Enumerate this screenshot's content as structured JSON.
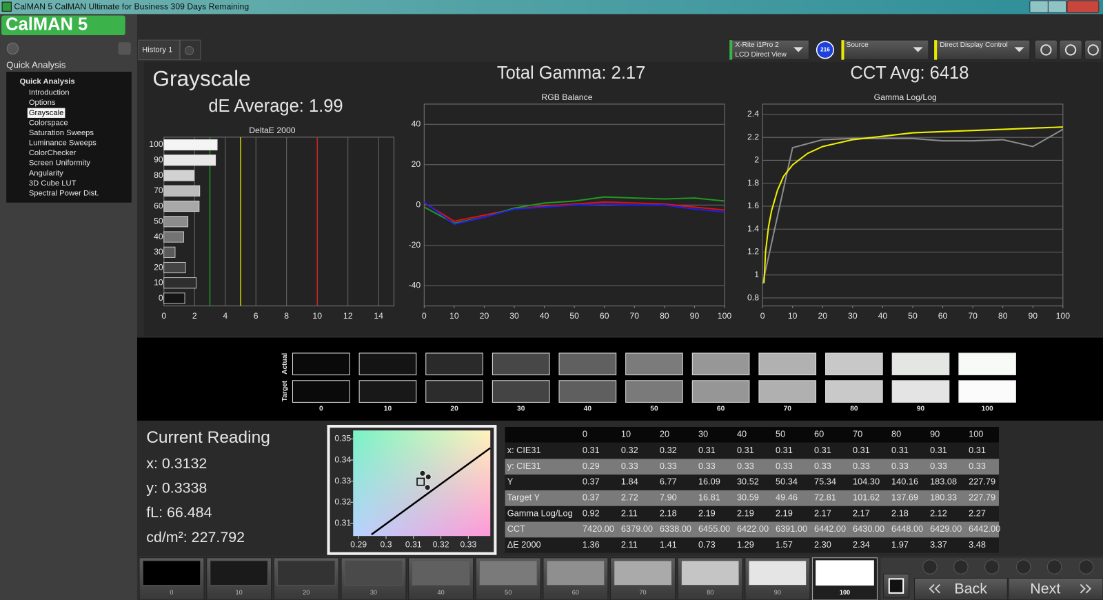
{
  "window": {
    "title": "CalMAN 5 CalMAN Ultimate for Business 309 Days Remaining",
    "logo": "CalMAN 5"
  },
  "sidebar": {
    "heading": "Quick Analysis",
    "tree_root": "Quick Analysis",
    "items": [
      "Introduction",
      "Options",
      "Grayscale",
      "Colorspace",
      "Saturation Sweeps",
      "Luminance Sweeps",
      "ColorChecker",
      "Screen Uniformity",
      "Angularity",
      "3D Cube LUT",
      "Spectral Power Dist."
    ],
    "selected": 2
  },
  "tabs": {
    "items": [
      "History 1"
    ]
  },
  "toolbar": {
    "meter": [
      "X-Rite i1Pro 2",
      "LCD Direct View"
    ],
    "badge": "216",
    "source": "Source",
    "display": "Direct Display Control"
  },
  "summary": {
    "title": "Grayscale",
    "de_average": "dE Average: 1.99",
    "total_gamma": "Total Gamma: 2.17",
    "cct_avg": "CCT Avg: 6418"
  },
  "chart_data": [
    {
      "type": "bar",
      "orientation": "horizontal",
      "title": "DeltaE 2000",
      "categories": [
        "100",
        "90",
        "80",
        "70",
        "60",
        "50",
        "40",
        "30",
        "20",
        "10",
        "0"
      ],
      "values": [
        3.48,
        3.37,
        1.97,
        2.34,
        2.3,
        1.57,
        1.29,
        0.73,
        1.41,
        2.11,
        1.36
      ],
      "colors": [
        "#f4f4f4",
        "#e8e8e8",
        "#d2d2d2",
        "#bcbcbc",
        "#a8a8a8",
        "#8c8c8c",
        "#737373",
        "#5a5a5a",
        "#444444",
        "#2e2e2e",
        "#151515"
      ],
      "xlim": [
        0,
        15
      ],
      "xticks": [
        0,
        2,
        4,
        6,
        8,
        10,
        12,
        14
      ],
      "grid": true,
      "thresholds": [
        {
          "value": 3,
          "color": "#1fa81f"
        },
        {
          "value": 5,
          "color": "#e8e800"
        },
        {
          "value": 10,
          "color": "#e02020"
        }
      ]
    },
    {
      "type": "line",
      "title": "RGB Balance",
      "x": [
        0,
        10,
        20,
        30,
        40,
        50,
        60,
        70,
        80,
        90,
        100
      ],
      "series": [
        {
          "color": "#e01010",
          "values": [
            1,
            -8,
            -5,
            -2,
            -0.5,
            0.5,
            1.5,
            1,
            0.5,
            -1,
            -2.5
          ]
        },
        {
          "color": "#1f9a1f",
          "values": [
            -1,
            -9,
            -6,
            -1.5,
            1,
            2,
            4,
            3.5,
            3,
            3.5,
            2
          ]
        },
        {
          "color": "#2020e8",
          "values": [
            1.5,
            -9.5,
            -6,
            -2,
            -1,
            0,
            0.5,
            0,
            0,
            -2,
            -3.5
          ]
        }
      ],
      "xlim": [
        0,
        100
      ],
      "xticks": [
        0,
        10,
        20,
        30,
        40,
        50,
        60,
        70,
        80,
        90,
        100
      ],
      "ylim": [
        -50,
        50
      ],
      "yticks": [
        40,
        20,
        0,
        -20,
        -40
      ],
      "grid": true
    },
    {
      "type": "line",
      "title": "Gamma Log/Log",
      "series": [
        {
          "color": "#8c8c8c",
          "x": [
            0,
            10,
            20,
            30,
            40,
            50,
            60,
            70,
            80,
            90,
            100
          ],
          "values": [
            0.92,
            2.11,
            2.18,
            2.19,
            2.19,
            2.19,
            2.17,
            2.17,
            2.18,
            2.12,
            2.27
          ]
        },
        {
          "color": "#f0f000",
          "x": [
            0.5,
            1,
            2,
            3,
            5,
            7,
            10,
            15,
            20,
            30,
            40,
            50,
            60,
            70,
            80,
            90,
            100
          ],
          "values": [
            0.93,
            1.2,
            1.42,
            1.56,
            1.74,
            1.86,
            1.96,
            2.06,
            2.12,
            2.18,
            2.21,
            2.24,
            2.25,
            2.26,
            2.27,
            2.28,
            2.29
          ]
        }
      ],
      "xlim": [
        0,
        100
      ],
      "xticks": [
        0,
        10,
        20,
        30,
        40,
        50,
        60,
        70,
        80,
        90,
        100
      ],
      "ylim": [
        0.73,
        2.49
      ],
      "yticks": [
        2.4,
        2.2,
        2,
        1.8,
        1.6,
        1.4,
        1.2,
        1,
        0.8
      ],
      "grid": true
    },
    {
      "type": "scatter",
      "xlim": [
        0.288,
        0.338
      ],
      "xticks": [
        0.29,
        0.3,
        0.31,
        0.32,
        0.33
      ],
      "ylim": [
        0.304,
        0.354
      ],
      "yticks": [
        0.35,
        0.34,
        0.33,
        0.32,
        0.31
      ],
      "locus": {
        "x": [
          0.2947,
          0.338
        ],
        "y": [
          0.3047,
          0.3457
        ]
      },
      "target": {
        "x": 0.3126,
        "y": 0.3297
      },
      "points": {
        "x": [
          0.3133,
          0.3154,
          0.3151
        ],
        "y": [
          0.3337,
          0.332,
          0.327
        ]
      }
    }
  ],
  "swatches": {
    "labels": [
      "0",
      "10",
      "20",
      "30",
      "40",
      "50",
      "60",
      "70",
      "80",
      "90",
      "100"
    ],
    "row_labels": [
      "Actual",
      "Target"
    ],
    "actual_colors": [
      "#0a0a0a",
      "#141414",
      "#2a2a2a",
      "#474747",
      "#606060",
      "#7b7b7b",
      "#979797",
      "#b1b1b1",
      "#c8c8c8",
      "#e3e6e3",
      "#f6fbf6"
    ],
    "target_colors": [
      "#0a0a0a",
      "#181818",
      "#2c2c2c",
      "#444444",
      "#5f5f5f",
      "#7a7a7a",
      "#969696",
      "#b0b0b0",
      "#c9c9c9",
      "#e4e4e4",
      "#fbfbfb"
    ]
  },
  "reading": {
    "title": "Current Reading",
    "lines": [
      "x: 0.3132",
      "y: 0.3338",
      "fL: 66.484",
      "cd/m²: 227.792"
    ]
  },
  "table": {
    "columns": [
      "0",
      "10",
      "20",
      "30",
      "40",
      "50",
      "60",
      "70",
      "80",
      "90",
      "100"
    ],
    "rows": [
      [
        "x: CIE31",
        "0.31",
        "0.32",
        "0.32",
        "0.31",
        "0.31",
        "0.31",
        "0.31",
        "0.31",
        "0.31",
        "0.31",
        "0.31"
      ],
      [
        "y: CIE31",
        "0.29",
        "0.33",
        "0.33",
        "0.33",
        "0.33",
        "0.33",
        "0.33",
        "0.33",
        "0.33",
        "0.33",
        "0.33"
      ],
      [
        "Y",
        "0.37",
        "1.84",
        "6.77",
        "16.09",
        "30.52",
        "50.34",
        "75.34",
        "104.30",
        "140.16",
        "183.08",
        "227.79"
      ],
      [
        "Target Y",
        "0.37",
        "2.72",
        "7.90",
        "16.81",
        "30.59",
        "49.46",
        "72.81",
        "101.62",
        "137.69",
        "180.33",
        "227.79"
      ],
      [
        "Gamma Log/Log",
        "0.92",
        "2.11",
        "2.18",
        "2.19",
        "2.19",
        "2.19",
        "2.17",
        "2.17",
        "2.18",
        "2.12",
        "2.27"
      ],
      [
        "CCT",
        "7420.00",
        "6379.00",
        "6338.00",
        "6455.00",
        "6422.00",
        "6391.00",
        "6442.00",
        "6430.00",
        "6448.00",
        "6429.00",
        "6442.00"
      ],
      [
        "ΔE 2000",
        "1.36",
        "2.11",
        "1.41",
        "0.73",
        "1.29",
        "1.57",
        "2.30",
        "2.34",
        "1.97",
        "3.37",
        "3.48"
      ]
    ]
  },
  "footer": {
    "patches": [
      "0",
      "10",
      "20",
      "30",
      "40",
      "50",
      "60",
      "70",
      "80",
      "90",
      "100"
    ],
    "colors": [
      "#000000",
      "#1a1a1a",
      "#333333",
      "#4a4a4a",
      "#606060",
      "#7a7a7a",
      "#8f8f8f",
      "#aaaaaa",
      "#c5c5c5",
      "#e5e5e5",
      "#ffffff"
    ],
    "selected": 10,
    "back": "Back",
    "next": "Next"
  }
}
